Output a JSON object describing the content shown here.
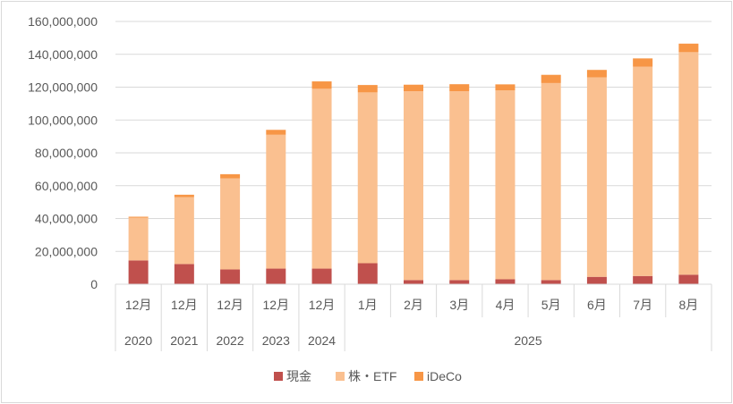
{
  "chart_data": {
    "type": "bar",
    "stacked": true,
    "title": "",
    "xlabel": "",
    "ylabel": "",
    "ylim": [
      0,
      160000000
    ],
    "y_ticks": [
      "0",
      "20,000,000",
      "40,000,000",
      "60,000,000",
      "80,000,000",
      "100,000,000",
      "120,000,000",
      "140,000,000",
      "160,000,000"
    ],
    "grid": true,
    "legend": "bottom",
    "categories": [
      "12月",
      "12月",
      "12月",
      "12月",
      "12月",
      "1月",
      "2月",
      "3月",
      "4月",
      "5月",
      "6月",
      "7月",
      "8月"
    ],
    "year_groups": [
      {
        "label": "2020",
        "count": 1
      },
      {
        "label": "2021",
        "count": 1
      },
      {
        "label": "2022",
        "count": 1
      },
      {
        "label": "2023",
        "count": 1
      },
      {
        "label": "2024",
        "count": 1
      },
      {
        "label": "2025",
        "count": 8
      }
    ],
    "series": [
      {
        "name": "現金",
        "color": "#c0504d",
        "values": [
          14500000,
          12300000,
          9000000,
          9500000,
          9500000,
          12800000,
          2500000,
          2500000,
          3000000,
          2500000,
          4500000,
          5000000,
          5800000
        ]
      },
      {
        "name": "株・ETF",
        "color": "#fac090",
        "values": [
          26000000,
          40700000,
          55500000,
          81500000,
          109500000,
          104000000,
          115000000,
          115000000,
          115000000,
          120000000,
          121500000,
          127500000,
          135500000
        ]
      },
      {
        "name": "iDeCo",
        "color": "#f79646",
        "values": [
          600000,
          1500000,
          2500000,
          3000000,
          4500000,
          4500000,
          4000000,
          4300000,
          3700000,
          5000000,
          4500000,
          5000000,
          5200000
        ]
      }
    ]
  }
}
